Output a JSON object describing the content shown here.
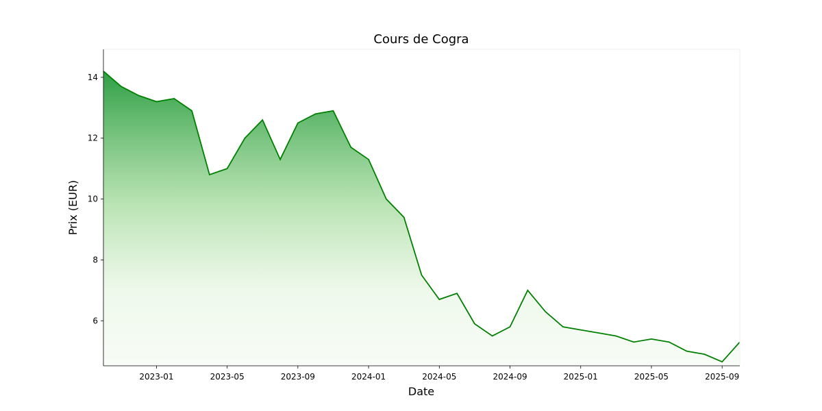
{
  "chart_data": {
    "type": "line",
    "title": "Cours de Cogra",
    "xlabel": "Date",
    "ylabel": "Prix (EUR)",
    "x": [
      "2022-10",
      "2022-11",
      "2022-12",
      "2023-01",
      "2023-02",
      "2023-03",
      "2023-04",
      "2023-05",
      "2023-06",
      "2023-07",
      "2023-08",
      "2023-09",
      "2023-10",
      "2023-11",
      "2023-12",
      "2024-01",
      "2024-02",
      "2024-03",
      "2024-04",
      "2024-05",
      "2024-06",
      "2024-07",
      "2024-08",
      "2024-09",
      "2024-10",
      "2024-11",
      "2024-12",
      "2025-01",
      "2025-02",
      "2025-03",
      "2025-04",
      "2025-05",
      "2025-06",
      "2025-07",
      "2025-08",
      "2025-09",
      "2025-10"
    ],
    "series": [
      {
        "name": "Cogra",
        "color": "#008000",
        "values": [
          14.2,
          13.7,
          13.4,
          13.2,
          13.3,
          12.9,
          10.8,
          11.0,
          12.0,
          12.6,
          11.3,
          12.5,
          12.8,
          12.9,
          11.7,
          11.3,
          10.0,
          9.4,
          7.5,
          6.7,
          6.9,
          5.9,
          5.5,
          5.8,
          7.0,
          6.3,
          5.8,
          5.7,
          5.6,
          5.5,
          5.3,
          5.4,
          5.3,
          5.0,
          4.9,
          4.65,
          5.3
        ]
      }
    ],
    "xlim": [
      "2022-10",
      "2025-10"
    ],
    "xticks": [
      "2023-01",
      "2023-05",
      "2023-09",
      "2024-01",
      "2024-05",
      "2024-09",
      "2025-01",
      "2025-05",
      "2025-09"
    ],
    "ylim": [
      4.52,
      14.92
    ],
    "yticks": [
      6,
      8,
      10,
      12,
      14
    ],
    "grid": false
  }
}
